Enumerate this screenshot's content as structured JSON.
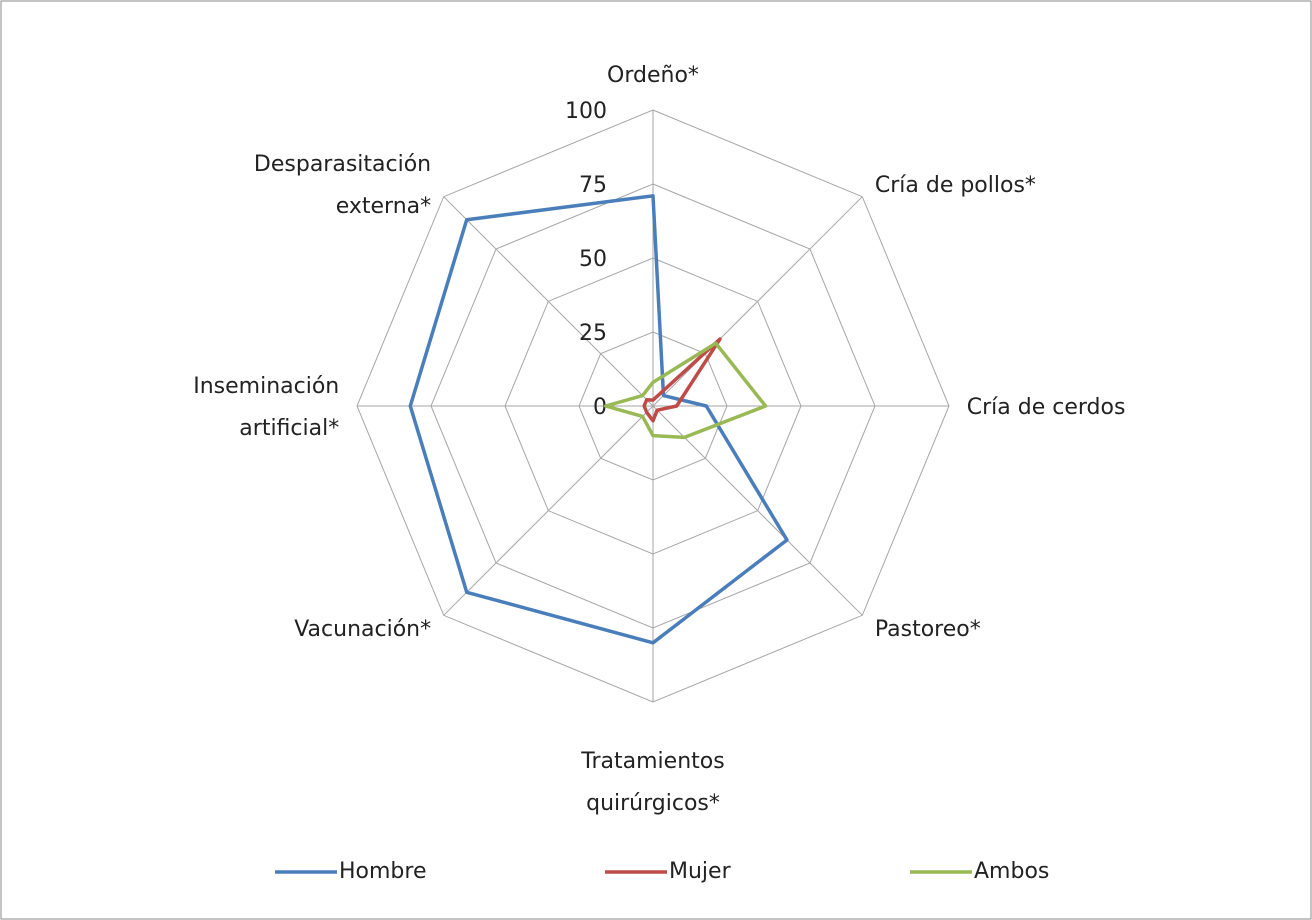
{
  "chart_data": {
    "type": "radar",
    "categories": [
      "Ordeño*",
      "Cría de pollos*",
      "Cría de cerdos",
      "Pastoreo*",
      "Tratamientos\nquirúrgicos*",
      "Vacunación*",
      "Inseminación\nartificial*",
      "Desparasitación\nexterna*"
    ],
    "series": [
      {
        "name": "Hombre",
        "color": "#4a7ebb",
        "values": [
          71,
          5,
          18,
          64,
          80,
          89,
          82,
          89
        ]
      },
      {
        "name": "Mujer",
        "color": "#be4b48",
        "values": [
          2,
          32,
          8,
          2,
          5,
          3,
          3,
          3
        ]
      },
      {
        "name": "Ambos",
        "color": "#98b954",
        "values": [
          8,
          30,
          38,
          15,
          10,
          5,
          16,
          5
        ]
      }
    ],
    "ylim": [
      0,
      100
    ],
    "yticks": [
      0,
      25,
      50,
      75,
      100
    ],
    "grid": true,
    "legend": "bottom"
  }
}
